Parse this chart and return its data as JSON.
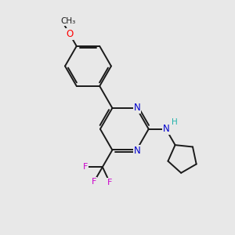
{
  "background_color": "#e8e8e8",
  "bond_color": "#1a1a1a",
  "nitrogen_color": "#0000cd",
  "oxygen_color": "#ff0000",
  "fluorine_color": "#cc00cc",
  "hydrogen_color": "#20b2aa",
  "figsize": [
    3.0,
    3.0
  ],
  "dpi": 100,
  "xlim": [
    0,
    10
  ],
  "ylim": [
    0,
    10
  ]
}
